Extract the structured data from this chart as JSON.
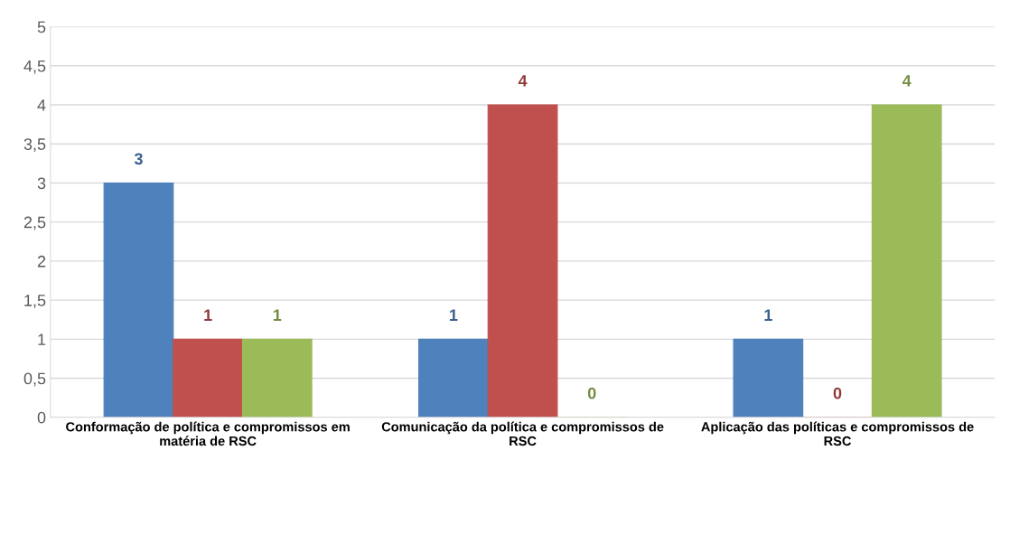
{
  "chart_data": {
    "type": "bar",
    "categories": [
      "Conformação de política e compromissos em matéria de RSC",
      "Comunicação da política e compromissos de RSC",
      "Aplicação das políticas e compromissos de RSC"
    ],
    "series": [
      {
        "color": "#4f81bd",
        "values": [
          3,
          1,
          1
        ]
      },
      {
        "color": "#c0504d",
        "values": [
          1,
          4,
          0
        ]
      },
      {
        "color": "#9bbb59",
        "values": [
          1,
          0,
          4
        ]
      }
    ],
    "ylim": [
      0,
      5
    ],
    "yticks": [
      0,
      {
        "value": 0.5,
        "label": "0,5"
      },
      1,
      {
        "value": 1.5,
        "label": "1,5"
      },
      2,
      {
        "value": 2.5,
        "label": "2,5"
      },
      3,
      {
        "value": 3.5,
        "label": "3,5"
      },
      4,
      {
        "value": 4.5,
        "label": "4,5"
      },
      5
    ],
    "grid": "y",
    "legend": false,
    "data_labels": true
  }
}
